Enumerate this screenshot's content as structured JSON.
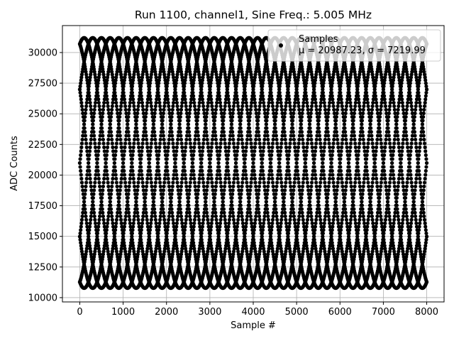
{
  "chart_data": {
    "type": "scatter",
    "title": "Run 1100, channel1, Sine Freq.: 5.005 MHz",
    "xlabel": "Sample #",
    "ylabel": "ADC Counts",
    "xlim": [
      -400,
      8400
    ],
    "ylim": [
      9650,
      32200
    ],
    "grid": true,
    "legend_position": "top-right",
    "marker_color": "#000000",
    "x_ticks": [
      0,
      1000,
      2000,
      3000,
      4000,
      5000,
      6000,
      7000,
      8000
    ],
    "x_tick_labels": [
      "0",
      "1000",
      "2000",
      "3000",
      "4000",
      "5000",
      "6000",
      "7000",
      "8000"
    ],
    "y_ticks": [
      10000,
      12500,
      15000,
      17500,
      20000,
      22500,
      25000,
      27500,
      30000
    ],
    "y_tick_labels": [
      "10000",
      "12500",
      "15000",
      "17500",
      "20000",
      "22500",
      "25000",
      "27500",
      "30000"
    ],
    "series": [
      {
        "name": "Samples",
        "legend_stats": "μ = 20987.23, σ = 7219.99",
        "mean": 20987.23,
        "std": 7219.99,
        "x_range": [
          0,
          8000
        ],
        "sine_amplitude": 10210,
        "sine_offset": 20987,
        "sine_period_samples": 2000,
        "interleaved_phases": 10,
        "phase_shift_per_sample": 0.2,
        "sample_stride": 10
      }
    ]
  }
}
